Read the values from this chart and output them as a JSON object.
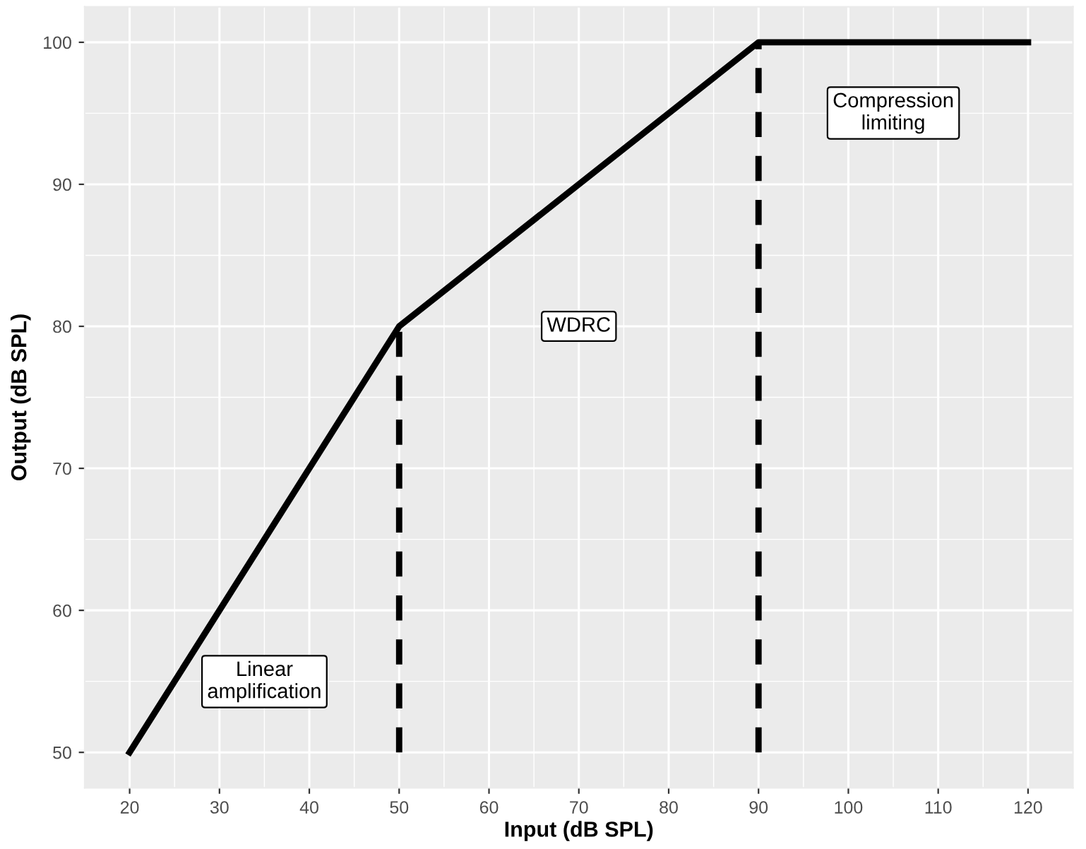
{
  "chart_data": {
    "type": "line",
    "xlabel": "Input (dB SPL)",
    "ylabel": "Output (dB SPL)",
    "series": [
      {
        "x": [
          20,
          50,
          90,
          120
        ],
        "values": [
          50,
          80,
          100,
          100
        ],
        "color": "#000000",
        "line_style": "solid"
      },
      {
        "x": [
          50,
          50
        ],
        "values": [
          50,
          80
        ],
        "color": "#000000",
        "line_style": "dashed"
      },
      {
        "x": [
          90,
          90
        ],
        "values": [
          50,
          100
        ],
        "color": "#000000",
        "line_style": "dashed"
      }
    ],
    "annotations": [
      "Linear\namplification",
      "WDRC",
      "Compression\nlimiting"
    ],
    "xlim": [
      15,
      125
    ],
    "ylim": [
      47.5,
      102.5
    ],
    "xticks": [
      20,
      30,
      40,
      50,
      60,
      70,
      80,
      90,
      100,
      110,
      120
    ],
    "yticks": [
      50,
      60,
      70,
      80,
      90,
      100
    ],
    "grid": true,
    "marker": "none"
  }
}
